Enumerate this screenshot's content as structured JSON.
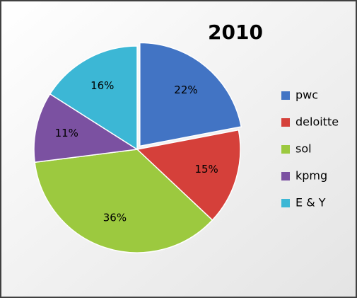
{
  "chart_data": {
    "type": "pie",
    "title": "2010",
    "categories": [
      "pwc",
      "deloitte",
      "sol",
      "kpmg",
      "E & Y"
    ],
    "values": [
      22,
      15,
      36,
      11,
      16
    ],
    "value_labels": [
      "22%",
      "15%",
      "36%",
      "11%",
      "16%"
    ],
    "colors": [
      "#4274c4",
      "#d5403a",
      "#9cc93f",
      "#7b51a1",
      "#3cb7d5"
    ],
    "legend": "right"
  }
}
